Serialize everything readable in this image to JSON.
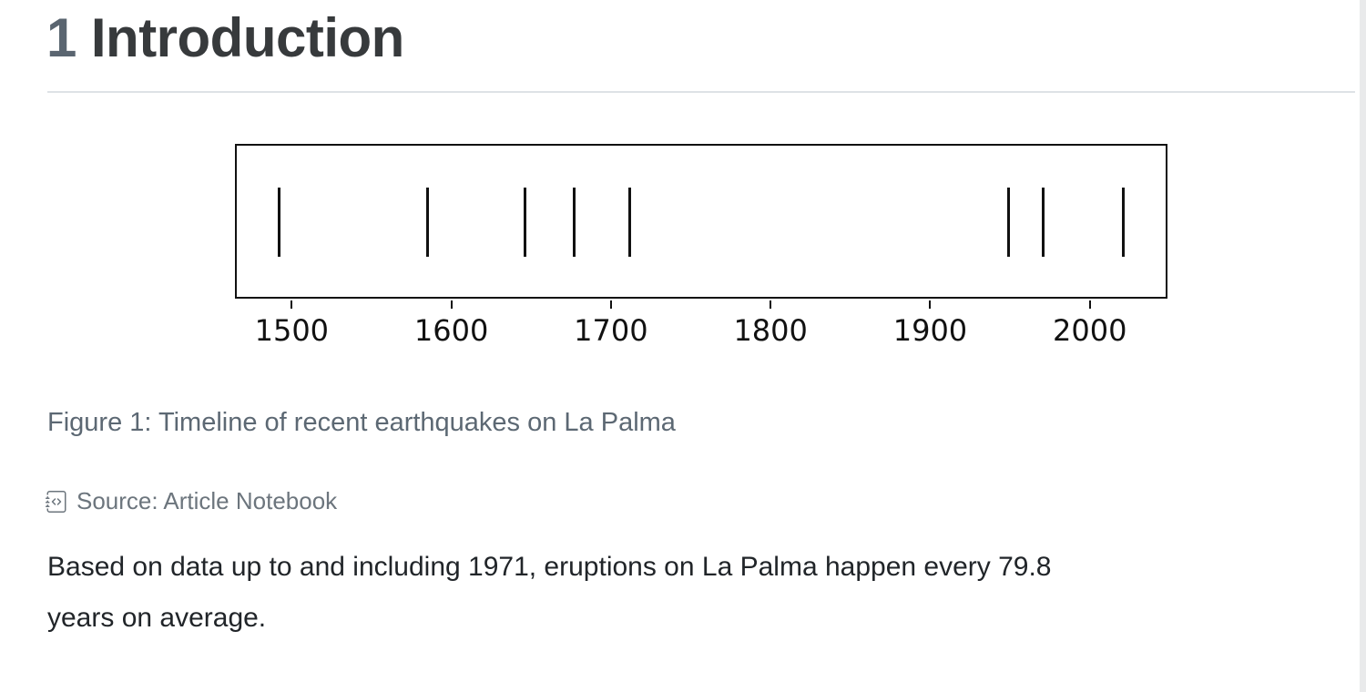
{
  "page": {
    "background_color": "#ffffff",
    "text_color": "#212529"
  },
  "heading": {
    "number": "1",
    "title": "Introduction",
    "number_color": "#5a6570",
    "title_color": "#373a3c"
  },
  "chart_data": {
    "type": "scatter",
    "style": "eventplot (single row of vertical tick marks, no y-axis)",
    "title": "",
    "xlabel": "",
    "ylabel": "",
    "x": [
      1492,
      1585,
      1646,
      1677,
      1712,
      1949,
      1971,
      2021
    ],
    "xticks": [
      1500,
      1600,
      1700,
      1800,
      1900,
      2000
    ],
    "xlim": [
      1465.6,
      2047.5
    ],
    "marker": "vertical-line",
    "marker_color": "#111111",
    "frame_color": "#111111",
    "grid": false,
    "legend": "none"
  },
  "figure": {
    "caption": "Figure 1: Timeline of recent earthquakes on La Palma",
    "caption_color": "#5c6873",
    "source_icon": "journal-code-icon",
    "source_label": "Source: Article Notebook",
    "source_color": "#6c757d"
  },
  "paragraph": {
    "lines": [
      "Based on data up to and including 1971, eruptions on La Palma happen every 79.8",
      "years on average."
    ]
  },
  "scrollbar": {
    "track_color": "#e9eaeb"
  }
}
